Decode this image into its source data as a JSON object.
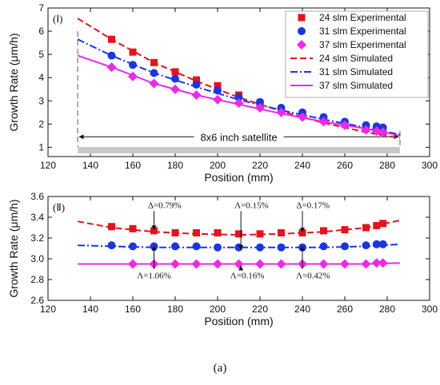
{
  "colors": {
    "series24": "#e3141c",
    "series31": "#1d35e0",
    "series37": "#ea2ae8",
    "axis": "#111111",
    "satellite_bar": "#c8c8c8"
  },
  "caption": "(a)",
  "chart_data": [
    {
      "type": "line",
      "panel_label": "(Ⅰ)",
      "xlabel": "Position (mm)",
      "ylabel": "Growth Rate (μm/h)",
      "xlim": [
        120,
        300
      ],
      "ylim": [
        0.6,
        7.0
      ],
      "xticks": [
        120,
        140,
        160,
        180,
        200,
        220,
        240,
        260,
        280,
        300
      ],
      "yticks": [
        1,
        2,
        3,
        4,
        5,
        6,
        7
      ],
      "grid": false,
      "legend_position": "top-right",
      "legend": [
        {
          "label": "24 slm Experimental",
          "series": "s24",
          "kind": "square"
        },
        {
          "label": "31 slm Experimental",
          "series": "s31",
          "kind": "circle"
        },
        {
          "label": "37 slm Experimental",
          "series": "s37",
          "kind": "diamond"
        },
        {
          "label": "24 slm Simulated",
          "series": "s24",
          "kind": "dash"
        },
        {
          "label": "31 slm Simulated",
          "series": "s31",
          "kind": "dashdot"
        },
        {
          "label": "37 slm Simulated",
          "series": "s37",
          "kind": "solid"
        }
      ],
      "satellite": {
        "label": "8x6 inch satellite",
        "x_start": 134,
        "x_end": 286
      },
      "experimental": [
        {
          "series": "s24",
          "marker": "square",
          "x": [
            150,
            160,
            170,
            180,
            190,
            200,
            210,
            220,
            230,
            240,
            250,
            260,
            270,
            275,
            278
          ],
          "y": [
            5.65,
            5.1,
            4.65,
            4.25,
            3.9,
            3.65,
            3.25,
            2.9,
            2.6,
            2.4,
            2.2,
            2.0,
            1.8,
            1.7,
            1.65
          ]
        },
        {
          "series": "s31",
          "marker": "circle",
          "x": [
            150,
            160,
            170,
            180,
            190,
            200,
            210,
            220,
            230,
            240,
            250,
            260,
            270,
            275,
            278
          ],
          "y": [
            4.95,
            4.55,
            4.2,
            3.95,
            3.7,
            3.45,
            3.15,
            2.95,
            2.7,
            2.5,
            2.3,
            2.1,
            1.95,
            1.9,
            1.85
          ]
        },
        {
          "series": "s37",
          "marker": "diamond",
          "x": [
            150,
            160,
            170,
            180,
            190,
            200,
            210,
            220,
            230,
            240,
            250,
            260,
            270,
            275,
            278
          ],
          "y": [
            4.45,
            4.05,
            3.75,
            3.5,
            3.25,
            3.05,
            2.9,
            2.7,
            2.5,
            2.3,
            2.1,
            1.95,
            1.75,
            1.7,
            1.65
          ]
        }
      ],
      "simulated": [
        {
          "series": "s24",
          "style": "dash",
          "x": [
            134,
            150,
            170,
            190,
            210,
            230,
            250,
            270,
            286
          ],
          "y": [
            6.55,
            5.65,
            4.65,
            3.85,
            3.15,
            2.55,
            2.05,
            1.65,
            1.4
          ]
        },
        {
          "series": "s31",
          "style": "dashdot",
          "x": [
            134,
            150,
            170,
            190,
            210,
            230,
            250,
            270,
            286
          ],
          "y": [
            5.65,
            4.95,
            4.2,
            3.6,
            3.05,
            2.6,
            2.2,
            1.85,
            1.55
          ]
        },
        {
          "series": "s37",
          "style": "solid",
          "x": [
            134,
            150,
            170,
            190,
            210,
            230,
            250,
            270,
            286
          ],
          "y": [
            4.95,
            4.45,
            3.75,
            3.25,
            2.85,
            2.45,
            2.1,
            1.8,
            1.5
          ]
        }
      ]
    },
    {
      "type": "line",
      "panel_label": "(Ⅱ)",
      "xlabel": "Position (mm)",
      "ylabel": "Growth Rate (μm/h)",
      "xlim": [
        120,
        300
      ],
      "ylim": [
        2.6,
        3.6
      ],
      "xticks": [
        120,
        140,
        160,
        180,
        200,
        220,
        240,
        260,
        280,
        300
      ],
      "yticks": [
        2.6,
        2.8,
        3.0,
        3.2,
        3.4,
        3.6
      ],
      "grid": false,
      "experimental": [
        {
          "series": "s24",
          "marker": "square",
          "x": [
            150,
            160,
            170,
            180,
            190,
            200,
            210,
            220,
            230,
            240,
            250,
            260,
            270,
            275,
            278
          ],
          "y": [
            3.31,
            3.29,
            3.27,
            3.25,
            3.25,
            3.25,
            3.24,
            3.24,
            3.25,
            3.25,
            3.27,
            3.28,
            3.3,
            3.32,
            3.34
          ]
        },
        {
          "series": "s31",
          "marker": "circle",
          "x": [
            150,
            160,
            170,
            180,
            190,
            200,
            210,
            220,
            230,
            240,
            250,
            260,
            270,
            275,
            278
          ],
          "y": [
            3.13,
            3.12,
            3.12,
            3.12,
            3.12,
            3.11,
            3.11,
            3.11,
            3.11,
            3.11,
            3.12,
            3.12,
            3.13,
            3.14,
            3.14
          ]
        },
        {
          "series": "s37",
          "marker": "diamond",
          "x": [
            160,
            170,
            180,
            190,
            200,
            210,
            220,
            230,
            240,
            250,
            260,
            270,
            275,
            278
          ],
          "y": [
            2.95,
            2.95,
            2.95,
            2.95,
            2.95,
            2.95,
            2.95,
            2.95,
            2.95,
            2.95,
            2.95,
            2.95,
            2.96,
            2.96
          ]
        }
      ],
      "simulated": [
        {
          "series": "s24",
          "style": "dash",
          "x": [
            134,
            150,
            170,
            190,
            210,
            230,
            250,
            270,
            286
          ],
          "y": [
            3.36,
            3.3,
            3.26,
            3.24,
            3.23,
            3.24,
            3.26,
            3.3,
            3.37
          ]
        },
        {
          "series": "s31",
          "style": "dashdot",
          "x": [
            134,
            150,
            170,
            190,
            210,
            230,
            250,
            270,
            286
          ],
          "y": [
            3.13,
            3.12,
            3.11,
            3.11,
            3.11,
            3.11,
            3.11,
            3.12,
            3.14
          ]
        },
        {
          "series": "s37",
          "style": "solid",
          "x": [
            134,
            150,
            170,
            190,
            210,
            230,
            250,
            270,
            286
          ],
          "y": [
            2.95,
            2.95,
            2.95,
            2.95,
            2.95,
            2.95,
            2.95,
            2.95,
            2.96
          ]
        }
      ],
      "annotations": [
        {
          "text": "Δ=0.79%",
          "x": 175,
          "y": 3.49,
          "arrow_to": [
            170,
            3.28
          ]
        },
        {
          "text": "Λ=0.15%",
          "x": 216,
          "y": 3.49,
          "arrow_to": [
            211,
            3.09
          ]
        },
        {
          "text": "Δ=0.17%",
          "x": 245,
          "y": 3.49,
          "arrow_to": [
            240,
            3.26
          ]
        },
        {
          "text": "Λ=1.06%",
          "x": 170,
          "y": 2.81,
          "arrow_to": [
            170,
            3.12
          ]
        },
        {
          "text": "Λ=0.16%",
          "x": 214,
          "y": 2.81,
          "arrow_to": [
            211,
            2.93
          ]
        },
        {
          "text": "Λ=0.42%",
          "x": 245,
          "y": 2.81,
          "arrow_to": [
            240,
            3.12
          ]
        }
      ]
    }
  ]
}
